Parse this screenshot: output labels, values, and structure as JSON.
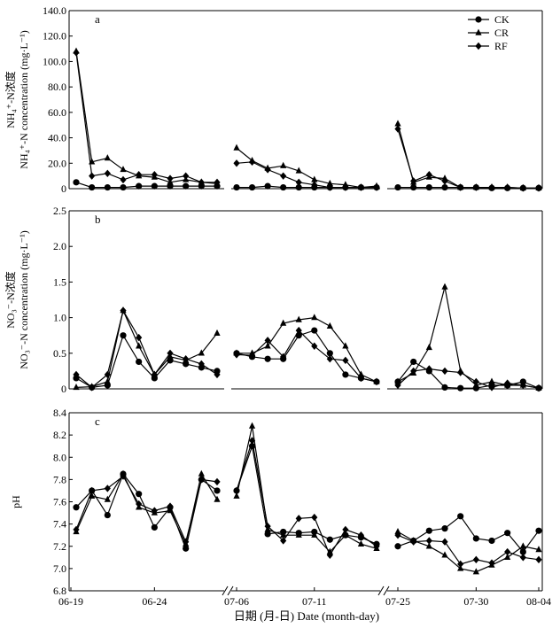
{
  "figure": {
    "x_axis_label": "日期 (月-日) Date (month-day)",
    "x_ticks": [
      "06-19",
      "06-24",
      "07-06",
      "07-11",
      "07-25",
      "07-30",
      "08-04"
    ],
    "legend": [
      "CK",
      "CR",
      "RF"
    ]
  },
  "chart_data": [
    {
      "type": "line",
      "panel_label": "a",
      "ylabel_lines": [
        "NH₄⁺-N浓度",
        "NH₄⁺-N concentration (mg·L⁻¹)"
      ],
      "ylim": [
        0,
        140
      ],
      "y_ticks": [
        "0",
        "20.0",
        "40.0",
        "60.0",
        "80.0",
        "100.0",
        "120.0",
        "140.0"
      ],
      "segments": [
        {
          "x": [
            "06-19",
            "06-20",
            "06-21",
            "06-22",
            "06-23",
            "06-24",
            "06-25",
            "06-26",
            "06-27",
            "06-28"
          ]
        },
        {
          "x": [
            "07-06",
            "07-07",
            "07-08",
            "07-09",
            "07-10",
            "07-11",
            "07-12",
            "07-13",
            "07-14",
            "07-15"
          ]
        },
        {
          "x": [
            "07-25",
            "07-26",
            "07-27",
            "07-28",
            "07-29",
            "07-30",
            "07-31",
            "08-01",
            "08-02",
            "08-03"
          ]
        }
      ],
      "series": [
        {
          "name": "CK",
          "marker": "circle",
          "values": [
            [
              5,
              1,
              1,
              1,
              2,
              2,
              2,
              2,
              2,
              2
            ],
            [
              1,
              1,
              2,
              1,
              1,
              1,
              1,
              1,
              1,
              1
            ],
            [
              1,
              1,
              1,
              1,
              1,
              1,
              0.5,
              0.5,
              0.5,
              0.5
            ]
          ]
        },
        {
          "name": "CR",
          "marker": "triangle",
          "values": [
            [
              108,
              21,
              24,
              15,
              10,
              9,
              5,
              7,
              5,
              4
            ],
            [
              32,
              22,
              16,
              18,
              14,
              7,
              4,
              3,
              1,
              2
            ],
            [
              51,
              5,
              9,
              8,
              1,
              1,
              1,
              1,
              0.5,
              0.5
            ]
          ]
        },
        {
          "name": "RF",
          "marker": "diamond",
          "values": [
            [
              107,
              10,
              12,
              7,
              11,
              11,
              8,
              10,
              5,
              5
            ],
            [
              20,
              21,
              15,
              10,
              5,
              3,
              1,
              1,
              1,
              1
            ],
            [
              47,
              6,
              11,
              6,
              1,
              1,
              1,
              1,
              0.5,
              0.5
            ]
          ]
        }
      ]
    },
    {
      "type": "line",
      "panel_label": "b",
      "ylabel_lines": [
        "NO₃⁻-N浓度",
        "NO₃⁻-N concentration (mg·L⁻¹)"
      ],
      "ylim": [
        0,
        2.5
      ],
      "y_ticks": [
        "0",
        "0.5",
        "1.0",
        "1.5",
        "2.0",
        "2.5"
      ],
      "segments": [
        {
          "x": [
            "06-19",
            "06-20",
            "06-21",
            "06-22",
            "06-23",
            "06-24",
            "06-25",
            "06-26",
            "06-27",
            "06-28"
          ]
        },
        {
          "x": [
            "07-06",
            "07-07",
            "07-08",
            "07-09",
            "07-10",
            "07-11",
            "07-12",
            "07-13",
            "07-14",
            "07-15"
          ]
        },
        {
          "x": [
            "07-25",
            "07-26",
            "07-27",
            "07-28",
            "07-29",
            "07-30",
            "07-31",
            "08-01",
            "08-02",
            "08-03"
          ]
        }
      ],
      "series": [
        {
          "name": "CK",
          "marker": "circle",
          "values": [
            [
              0.15,
              0.02,
              0.05,
              0.75,
              0.38,
              0.15,
              0.4,
              0.35,
              0.3,
              0.25
            ],
            [
              0.5,
              0.45,
              0.42,
              0.42,
              0.75,
              0.82,
              0.5,
              0.2,
              0.15,
              0.1
            ],
            [
              0.1,
              0.38,
              0.25,
              0.02,
              0.01,
              0.01,
              0.05,
              0.05,
              0.1,
              0.01
            ]
          ]
        },
        {
          "name": "CR",
          "marker": "triangle",
          "values": [
            [
              0.02,
              0.03,
              0.1,
              1.1,
              0.6,
              0.2,
              0.45,
              0.4,
              0.5,
              0.78
            ],
            [
              0.5,
              0.5,
              0.6,
              0.92,
              0.97,
              1.0,
              0.88,
              0.6,
              0.2,
              0.1
            ],
            [
              0.1,
              0.22,
              0.58,
              1.43,
              0.25,
              0.05,
              0.1,
              0.05,
              0.05,
              0.01
            ]
          ]
        },
        {
          "name": "RF",
          "marker": "diamond",
          "values": [
            [
              0.2,
              0.02,
              0.2,
              1.1,
              0.72,
              0.2,
              0.5,
              0.42,
              0.35,
              0.2
            ],
            [
              0.48,
              0.47,
              0.68,
              0.45,
              0.82,
              0.6,
              0.42,
              0.4,
              0.15,
              0.1
            ],
            [
              0.05,
              0.25,
              0.28,
              0.25,
              0.23,
              0.1,
              0.02,
              0.08,
              0.05,
              0.01
            ]
          ]
        }
      ]
    },
    {
      "type": "line",
      "panel_label": "c",
      "ylabel_lines": [
        "pH"
      ],
      "ylim": [
        6.8,
        8.4
      ],
      "y_ticks": [
        "6.8",
        "7.0",
        "7.2",
        "7.4",
        "7.6",
        "7.8",
        "8.0",
        "8.2",
        "8.4"
      ],
      "segments": [
        {
          "x": [
            "06-19",
            "06-20",
            "06-21",
            "06-22",
            "06-23",
            "06-24",
            "06-25",
            "06-26",
            "06-27",
            "06-28"
          ]
        },
        {
          "x": [
            "07-06",
            "07-07",
            "07-08",
            "07-09",
            "07-10",
            "07-11",
            "07-12",
            "07-13",
            "07-14",
            "07-15"
          ]
        },
        {
          "x": [
            "07-25",
            "07-26",
            "07-27",
            "07-28",
            "07-29",
            "07-30",
            "07-31",
            "08-01",
            "08-02",
            "08-03"
          ]
        }
      ],
      "series": [
        {
          "name": "CK",
          "marker": "circle",
          "values": [
            [
              7.55,
              7.7,
              7.48,
              7.85,
              7.67,
              7.37,
              7.55,
              7.18,
              7.8,
              7.7
            ],
            [
              7.7,
              8.1,
              7.31,
              7.33,
              7.32,
              7.33,
              7.26,
              7.3,
              7.28,
              7.22
            ],
            [
              7.2,
              7.25,
              7.34,
              7.36,
              7.47,
              7.27,
              7.25,
              7.32,
              7.15,
              7.34
            ]
          ]
        },
        {
          "name": "CR",
          "marker": "triangle",
          "values": [
            [
              7.33,
              7.65,
              7.62,
              7.85,
              7.55,
              7.5,
              7.52,
              7.22,
              7.85,
              7.62
            ],
            [
              7.65,
              8.28,
              7.35,
              7.3,
              7.3,
              7.3,
              7.15,
              7.3,
              7.22,
              7.18
            ],
            [
              7.33,
              7.25,
              7.2,
              7.12,
              7.0,
              6.97,
              7.03,
              7.1,
              7.2,
              7.17
            ]
          ]
        },
        {
          "name": "RF",
          "marker": "diamond",
          "values": [
            [
              7.35,
              7.7,
              7.72,
              7.83,
              7.58,
              7.52,
              7.56,
              7.24,
              7.8,
              7.78
            ],
            [
              7.7,
              8.15,
              7.38,
              7.25,
              7.45,
              7.46,
              7.12,
              7.35,
              7.3,
              7.2
            ],
            [
              7.3,
              7.24,
              7.25,
              7.24,
              7.04,
              7.08,
              7.05,
              7.15,
              7.1,
              7.08
            ]
          ]
        }
      ]
    }
  ]
}
